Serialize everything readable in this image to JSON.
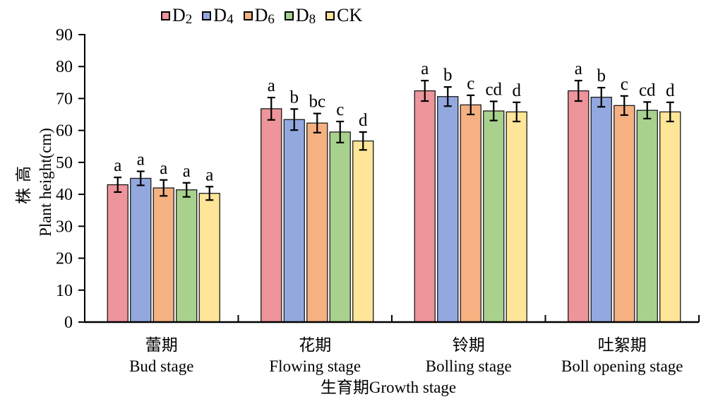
{
  "chart_data": {
    "type": "bar",
    "title": "",
    "xlabel": "生育期Growth stage",
    "ylabel_line1_zh": "株高",
    "ylabel_line2_en": "Plant height(cm)",
    "ylim": [
      0,
      90
    ],
    "ytick_step": 10,
    "yticks": [
      0,
      10,
      20,
      30,
      40,
      50,
      60,
      70,
      80,
      90
    ],
    "grid": false,
    "legend_position": "top",
    "axis_color": "#000000",
    "bar_outline_color": "#1a1a1a",
    "categories": [
      {
        "zh": "蕾期",
        "en": "Bud stage"
      },
      {
        "zh": "花期",
        "en": "Flowing stage"
      },
      {
        "zh": "铃期",
        "en": "Bolling stage"
      },
      {
        "zh": "吐絮期",
        "en": "Boll opening stage"
      }
    ],
    "series": [
      {
        "label": "D",
        "label_sub": "2",
        "color": "#EE949B",
        "values": [
          43.0,
          66.8,
          72.4,
          72.4
        ],
        "errors": [
          2.3,
          3.5,
          3.2,
          3.2
        ],
        "sig_letters": [
          "a",
          "a",
          "a",
          "a"
        ]
      },
      {
        "label": "D",
        "label_sub": "4",
        "color": "#92A8DF",
        "values": [
          45.0,
          63.4,
          70.6,
          70.4
        ],
        "errors": [
          2.2,
          3.3,
          3.0,
          3.0
        ],
        "sig_letters": [
          "a",
          "b",
          "b",
          "b"
        ]
      },
      {
        "label": "D",
        "label_sub": "6",
        "color": "#F5B182",
        "values": [
          42.0,
          62.3,
          68.0,
          67.8
        ],
        "errors": [
          2.5,
          3.0,
          3.0,
          3.0
        ],
        "sig_letters": [
          "a",
          "bc",
          "c",
          "c"
        ]
      },
      {
        "label": "D",
        "label_sub": "8",
        "color": "#A8D18D",
        "values": [
          41.4,
          59.5,
          66.1,
          66.3
        ],
        "errors": [
          2.2,
          3.3,
          3.0,
          2.6
        ],
        "sig_letters": [
          "a",
          "c",
          "cd",
          "cd"
        ]
      },
      {
        "label": "CK",
        "label_sub": "",
        "color": "#FFE597",
        "values": [
          40.3,
          56.7,
          65.8,
          65.8
        ],
        "errors": [
          2.1,
          2.8,
          3.0,
          3.0
        ],
        "sig_letters": [
          "a",
          "d",
          "d",
          "d"
        ]
      }
    ]
  }
}
